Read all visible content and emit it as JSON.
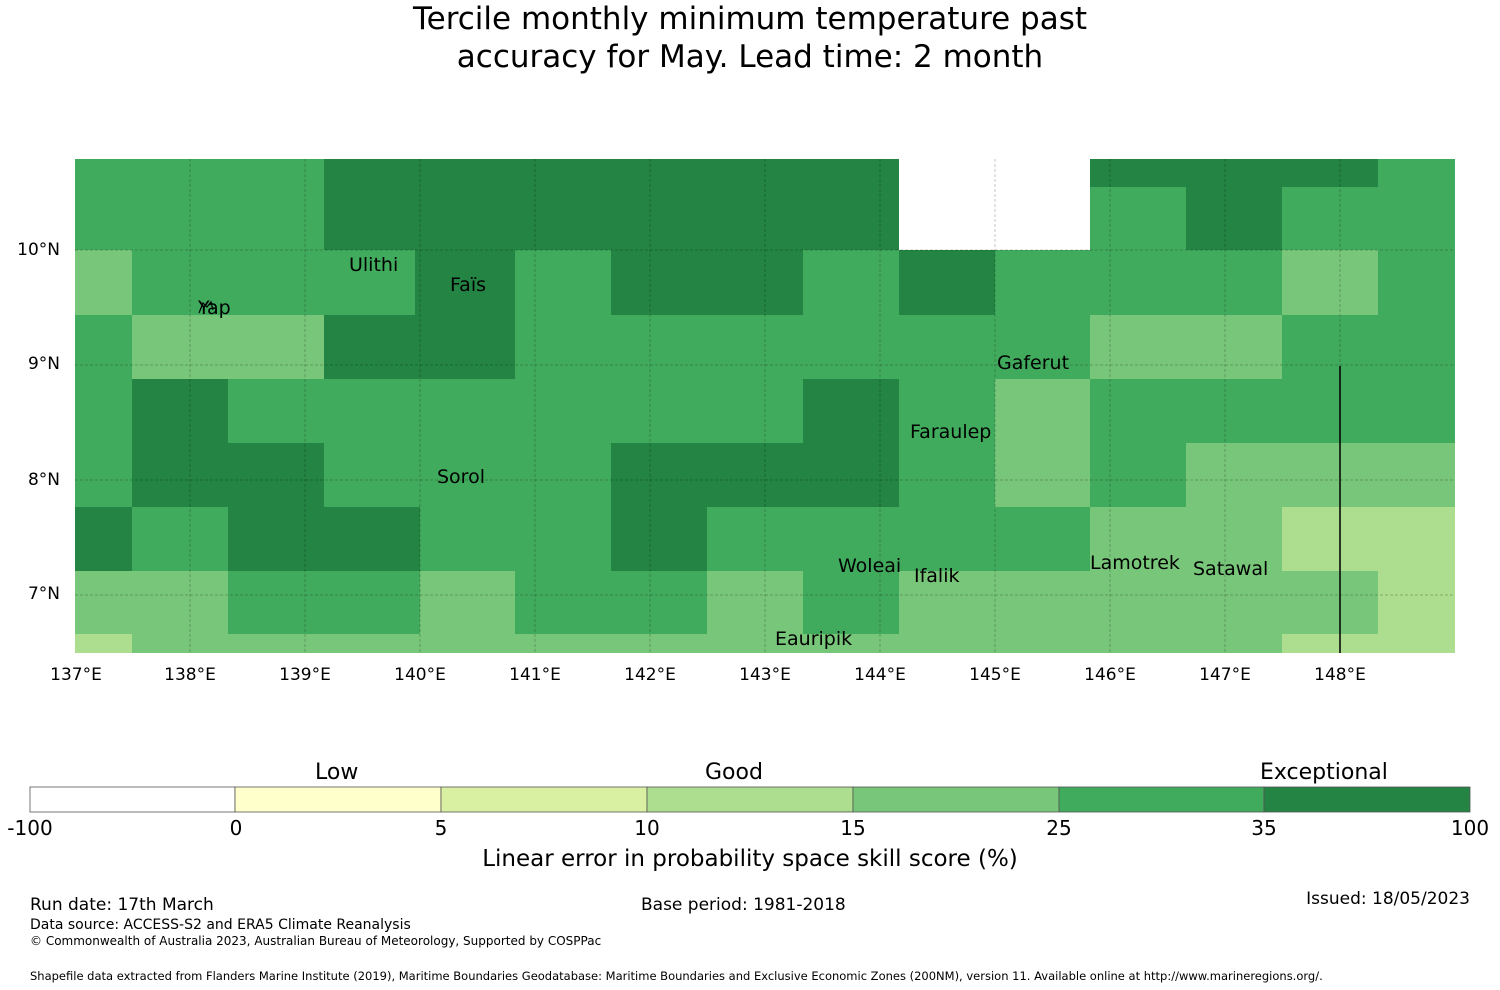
{
  "title": {
    "line1": "Tercile monthly minimum temperature past",
    "line2": "accuracy for May. Lead time: 2 month"
  },
  "map": {
    "lat_labels": [
      "10°N",
      "9°N",
      "8°N",
      "7°N"
    ],
    "lon_labels": [
      "137°E",
      "138°E",
      "139°E",
      "140°E",
      "141°E",
      "142°E",
      "143°E",
      "144°E",
      "145°E",
      "146°E",
      "147°E",
      "148°E"
    ],
    "islands": [
      "Ulithi",
      "Faïs",
      "Yap",
      "Gaferut",
      "Faraulep",
      "Sorol",
      "Woleai",
      "Ifalik",
      "Lamotrek",
      "Satawal",
      "Eauripik"
    ],
    "colors": {
      "c0": "#ffffcc",
      "c5": "#d9f0a3",
      "c10": "#addd8e",
      "c15": "#78c679",
      "c25": "#41ab5d",
      "c35": "#238443"
    }
  },
  "colorbar": {
    "categories": [
      "Low",
      "Good",
      "Exceptional"
    ],
    "ticks": [
      "-100",
      "0",
      "5",
      "10",
      "15",
      "25",
      "35",
      "100"
    ],
    "colors": [
      "#ffffff",
      "#ffffcc",
      "#d9f0a3",
      "#addd8e",
      "#78c679",
      "#41ab5d",
      "#238443"
    ],
    "xlabel": "Linear error in probability space skill score (%)"
  },
  "footer": {
    "run_date": "Run date: 17th March",
    "base_period": "Base period: 1981-2018",
    "issued": "Issued: 18/05/2023",
    "data_source": "Data source: ACCESS-S2 and ERA5 Climate Reanalysis",
    "copyright": "© Commonwealth of Australia 2023, Australian Bureau of Meteorology, Supported by COSPPac",
    "shapefile": "Shapefile data extracted from Flanders Marine Institute (2019), Maritime Boundaries Geodatabase: Maritime Boundaries and Exclusive Economic Zones (200NM), version 11. Available online at http://www.marineregions.org/."
  }
}
